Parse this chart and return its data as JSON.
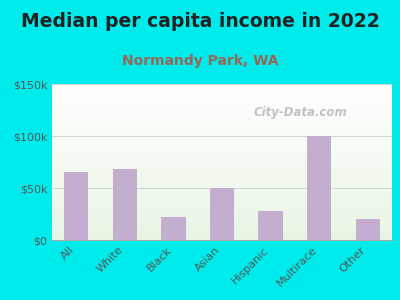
{
  "title": "Median per capita income in 2022",
  "subtitle": "Normandy Park, WA",
  "categories": [
    "All",
    "White",
    "Black",
    "Asian",
    "Hispanic",
    "Multirace",
    "Other"
  ],
  "values": [
    65000,
    68000,
    22000,
    50000,
    28000,
    100000,
    20000
  ],
  "bar_color": "#c4aed0",
  "background_outer": "#00ecec",
  "title_color": "#222222",
  "subtitle_color": "#996655",
  "tick_color": "#555555",
  "watermark_text": "City-Data.com",
  "ylim": [
    0,
    150000
  ],
  "yticks": [
    0,
    50000,
    100000,
    150000
  ],
  "ytick_labels": [
    "$0",
    "$50k",
    "$100k",
    "$150k"
  ],
  "title_fontsize": 13.5,
  "subtitle_fontsize": 10,
  "tick_fontsize": 8
}
